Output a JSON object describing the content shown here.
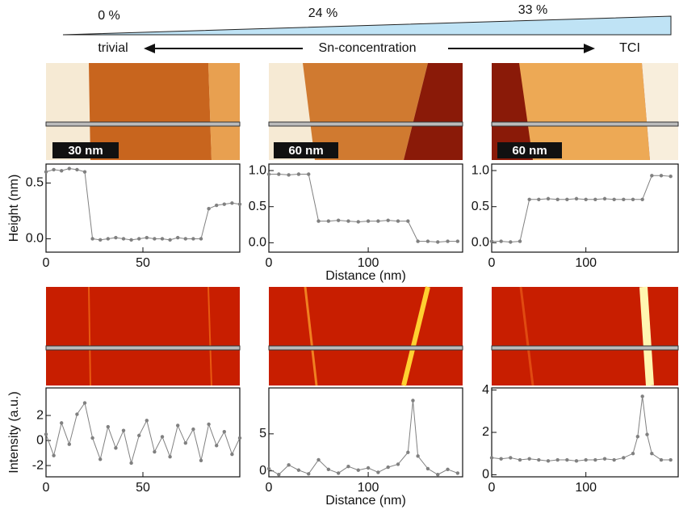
{
  "header": {
    "concentrations": [
      "0 %",
      "24 %",
      "33 %"
    ],
    "left": "trivial",
    "middle": "Sn-concentration",
    "right": "TCI"
  },
  "images": [
    {
      "scale_bar": "30 nm"
    },
    {
      "scale_bar": "60 nm"
    },
    {
      "scale_bar": "60 nm"
    }
  ],
  "chart_data": [
    {
      "type": "line",
      "y_label": "Height (nm)",
      "xlim": [
        0,
        100
      ],
      "xticks": [
        0,
        50
      ],
      "ylim": [
        -0.12,
        0.67
      ],
      "yticks": [
        {
          "value": 0,
          "label": "0.0"
        },
        {
          "value": 0.5,
          "label": "0.5"
        }
      ],
      "x": [
        0,
        4,
        8,
        12,
        16,
        20,
        24,
        28,
        32,
        36,
        40,
        44,
        48,
        52,
        56,
        60,
        64,
        68,
        72,
        76,
        80,
        84,
        88,
        92,
        96,
        100
      ],
      "series": [
        {
          "color": "#808080",
          "values": [
            0.6,
            0.62,
            0.61,
            0.63,
            0.62,
            0.6,
            0.0,
            -0.01,
            0.0,
            0.01,
            0.0,
            -0.01,
            0.0,
            0.01,
            0.0,
            0.0,
            -0.01,
            0.01,
            0.0,
            0.0,
            0.0,
            0.27,
            0.3,
            0.31,
            0.32,
            0.31
          ]
        }
      ]
    },
    {
      "type": "line",
      "x_label": "Distance (nm)",
      "xlim": [
        0,
        195
      ],
      "xticks": [
        0,
        100
      ],
      "ylim": [
        -0.13,
        1.09
      ],
      "yticks": [
        {
          "value": 0,
          "label": "0.0"
        },
        {
          "value": 0.5,
          "label": "0.5"
        },
        {
          "value": 1,
          "label": "1.0"
        }
      ],
      "x": [
        0,
        10,
        20,
        30,
        40,
        50,
        60,
        70,
        80,
        90,
        100,
        110,
        120,
        130,
        140,
        150,
        160,
        170,
        180,
        190
      ],
      "series": [
        {
          "color": "#808080",
          "values": [
            0.95,
            0.95,
            0.94,
            0.95,
            0.95,
            0.3,
            0.3,
            0.31,
            0.3,
            0.29,
            0.3,
            0.3,
            0.31,
            0.3,
            0.3,
            0.02,
            0.02,
            0.01,
            0.02,
            0.02
          ]
        }
      ]
    },
    {
      "type": "line",
      "xlim": [
        0,
        198
      ],
      "xticks": [
        0,
        100
      ],
      "ylim": [
        -0.13,
        1.09
      ],
      "yticks": [
        {
          "value": 0,
          "label": "0.0"
        },
        {
          "value": 0.5,
          "label": "0.5"
        },
        {
          "value": 1,
          "label": "1.0"
        }
      ],
      "x": [
        0,
        10,
        20,
        30,
        40,
        50,
        60,
        70,
        80,
        90,
        100,
        110,
        120,
        130,
        140,
        150,
        160,
        170,
        180,
        190
      ],
      "series": [
        {
          "color": "#808080",
          "values": [
            0.02,
            0.02,
            0.01,
            0.02,
            0.6,
            0.6,
            0.61,
            0.6,
            0.6,
            0.61,
            0.6,
            0.6,
            0.61,
            0.6,
            0.6,
            0.6,
            0.6,
            0.93,
            0.93,
            0.92
          ]
        }
      ]
    },
    {
      "type": "line",
      "y_label": "Intensity (a.u.)",
      "xlim": [
        0,
        100
      ],
      "xticks": [
        0,
        50
      ],
      "ylim": [
        -2.9,
        4.2
      ],
      "yticks": [
        -2,
        0,
        2
      ],
      "x": [
        0,
        4,
        8,
        12,
        16,
        20,
        24,
        28,
        32,
        36,
        40,
        44,
        48,
        52,
        56,
        60,
        64,
        68,
        72,
        76,
        80,
        84,
        88,
        92,
        96,
        100
      ],
      "series": [
        {
          "color": "#808080",
          "values": [
            0.5,
            -1.2,
            1.4,
            -0.3,
            2.1,
            3.0,
            0.2,
            -1.5,
            1.1,
            -0.6,
            0.8,
            -1.8,
            0.4,
            1.6,
            -0.9,
            0.3,
            -1.3,
            1.2,
            -0.2,
            0.9,
            -1.6,
            1.3,
            -0.4,
            0.7,
            -1.1,
            0.2
          ]
        }
      ]
    },
    {
      "type": "line",
      "x_label": "Distance (nm)",
      "xlim": [
        0,
        195
      ],
      "xticks": [
        0,
        100
      ],
      "ylim": [
        -0.8,
        11.2
      ],
      "yticks": [
        0,
        5
      ],
      "x": [
        0,
        10,
        20,
        30,
        40,
        50,
        60,
        70,
        80,
        90,
        100,
        110,
        120,
        130,
        140,
        145,
        150,
        160,
        170,
        180,
        190
      ],
      "series": [
        {
          "color": "#808080",
          "values": [
            0.3,
            -0.5,
            0.8,
            0.1,
            -0.4,
            1.5,
            0.2,
            -0.3,
            0.6,
            0.1,
            0.4,
            -0.2,
            0.5,
            0.9,
            2.5,
            9.5,
            2.0,
            0.3,
            -0.5,
            0.2,
            -0.3
          ]
        }
      ]
    },
    {
      "type": "line",
      "xlim": [
        0,
        198
      ],
      "xticks": [
        0,
        100
      ],
      "ylim": [
        -0.1,
        4.1
      ],
      "yticks": [
        0,
        2,
        4
      ],
      "x": [
        0,
        10,
        20,
        30,
        40,
        50,
        60,
        70,
        80,
        90,
        100,
        110,
        120,
        130,
        140,
        150,
        155,
        160,
        165,
        170,
        180,
        190
      ],
      "series": [
        {
          "color": "#808080",
          "values": [
            0.8,
            0.75,
            0.8,
            0.7,
            0.75,
            0.7,
            0.65,
            0.7,
            0.7,
            0.65,
            0.7,
            0.7,
            0.75,
            0.7,
            0.8,
            1.0,
            1.8,
            3.7,
            1.9,
            1.0,
            0.7,
            0.7
          ]
        }
      ]
    }
  ]
}
